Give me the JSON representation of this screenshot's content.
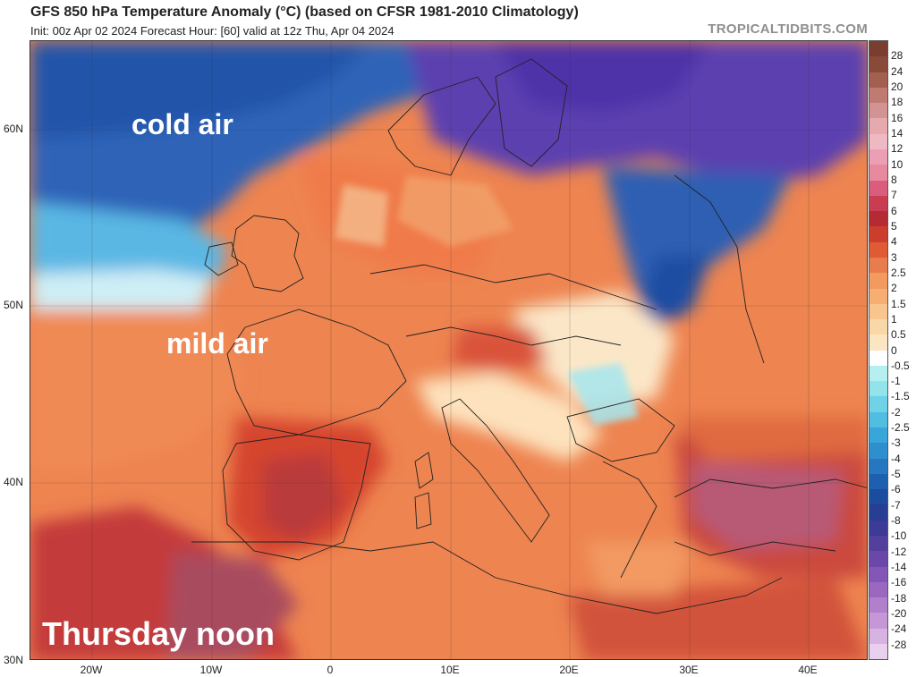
{
  "header": {
    "title": "GFS 850 hPa Temperature Anomaly (°C) (based on CFSR 1981-2010 Climatology)",
    "subtitle": "Init: 00z Apr 02 2024   Forecast Hour: [60]   valid at 12z Thu, Apr 04 2024",
    "brand": "TROPICALTIDBITS.COM"
  },
  "overlays": {
    "cold": "cold air",
    "mild": "mild air",
    "when": "Thursday noon"
  },
  "axes": {
    "lat_labels": [
      "60N",
      "50N",
      "40N",
      "30N"
    ],
    "lon_labels": [
      "20W",
      "10W",
      "0",
      "10E",
      "20E",
      "30E",
      "40E"
    ]
  },
  "colorbar": {
    "labels": [
      "28",
      "24",
      "20",
      "18",
      "16",
      "14",
      "12",
      "10",
      "8",
      "7",
      "6",
      "5",
      "4",
      "3",
      "2.5",
      "2",
      "1.5",
      "1",
      "0.5",
      "0",
      "-0.5",
      "-1",
      "-1.5",
      "-2",
      "-2.5",
      "-3",
      "-4",
      "-5",
      "-6",
      "-7",
      "-8",
      "-10",
      "-12",
      "-14",
      "-16",
      "-18",
      "-20",
      "-24",
      "-28"
    ],
    "colors": [
      "#8a4a3a",
      "#a35f50",
      "#bf7a72",
      "#d49393",
      "#e6a9ae",
      "#efb9c4",
      "#ec9fb4",
      "#e78aa0",
      "#db5d7d",
      "#c83d52",
      "#b52a33",
      "#cc3e2b",
      "#de5b35",
      "#e87c4c",
      "#f39a5e",
      "#f6ae73",
      "#f9c58f",
      "#fad7a6",
      "#fce6c2",
      "#ffffff",
      "#b4f0ef",
      "#92e3ea",
      "#6fd2e6",
      "#50bde1",
      "#38a6d9",
      "#2f8ece",
      "#2676c0",
      "#1f5faf",
      "#1b4c9d",
      "#283e93",
      "#3c3b95",
      "#53409c",
      "#6a47a8",
      "#8456b6",
      "#9b68c0",
      "#b17fcb",
      "#c697d6",
      "#d8b3e2",
      "#e8d0ee"
    ]
  }
}
